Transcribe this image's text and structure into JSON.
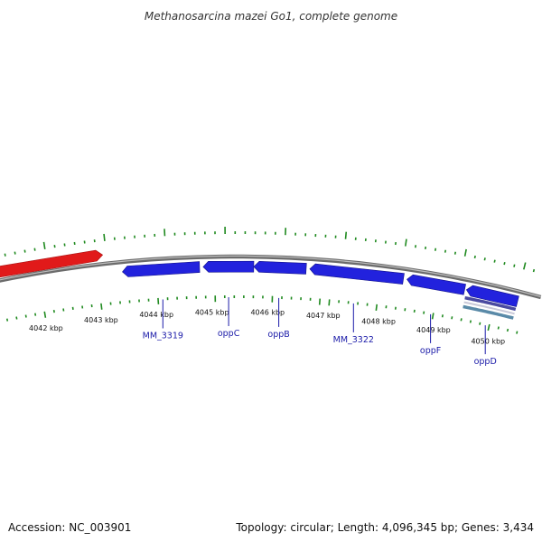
{
  "title": "Methanosarcina mazei Go1, complete genome",
  "footer": {
    "accession": "Accession: NC_003901",
    "summary": "Topology: circular; Length: 4,096,345 bp; Genes: 3,434"
  },
  "colors": {
    "backbone": "#8a8a8a",
    "tick": "#1f8a1f",
    "gene_forward": "#e11a1a",
    "gene_reverse": "#2222dd",
    "gene_label": "#1a1aa8",
    "feature_track": "#4a4aa0"
  },
  "inner_ticks": [
    {
      "kbp": 4042,
      "label": "4042 kbp"
    },
    {
      "kbp": 4043,
      "label": "4043 kbp"
    },
    {
      "kbp": 4044,
      "label": "4044 kbp"
    },
    {
      "kbp": 4045,
      "label": "4045 kbp"
    },
    {
      "kbp": 4046,
      "label": "4046 kbp"
    },
    {
      "kbp": 4047,
      "label": "4047 kbp"
    },
    {
      "kbp": 4048,
      "label": "4048 kbp"
    },
    {
      "kbp": 4049,
      "label": "4049 kbp"
    },
    {
      "kbp": 4050,
      "label": "4050 kbp"
    }
  ],
  "genes": [
    {
      "name": "",
      "strand": "forward"
    },
    {
      "name": "MM_3319",
      "strand": "reverse"
    },
    {
      "name": "oppC",
      "strand": "reverse"
    },
    {
      "name": "oppB",
      "strand": "reverse"
    },
    {
      "name": "MM_3322",
      "strand": "reverse"
    },
    {
      "name": "oppF",
      "strand": "reverse"
    },
    {
      "name": "oppD",
      "strand": "reverse"
    }
  ]
}
